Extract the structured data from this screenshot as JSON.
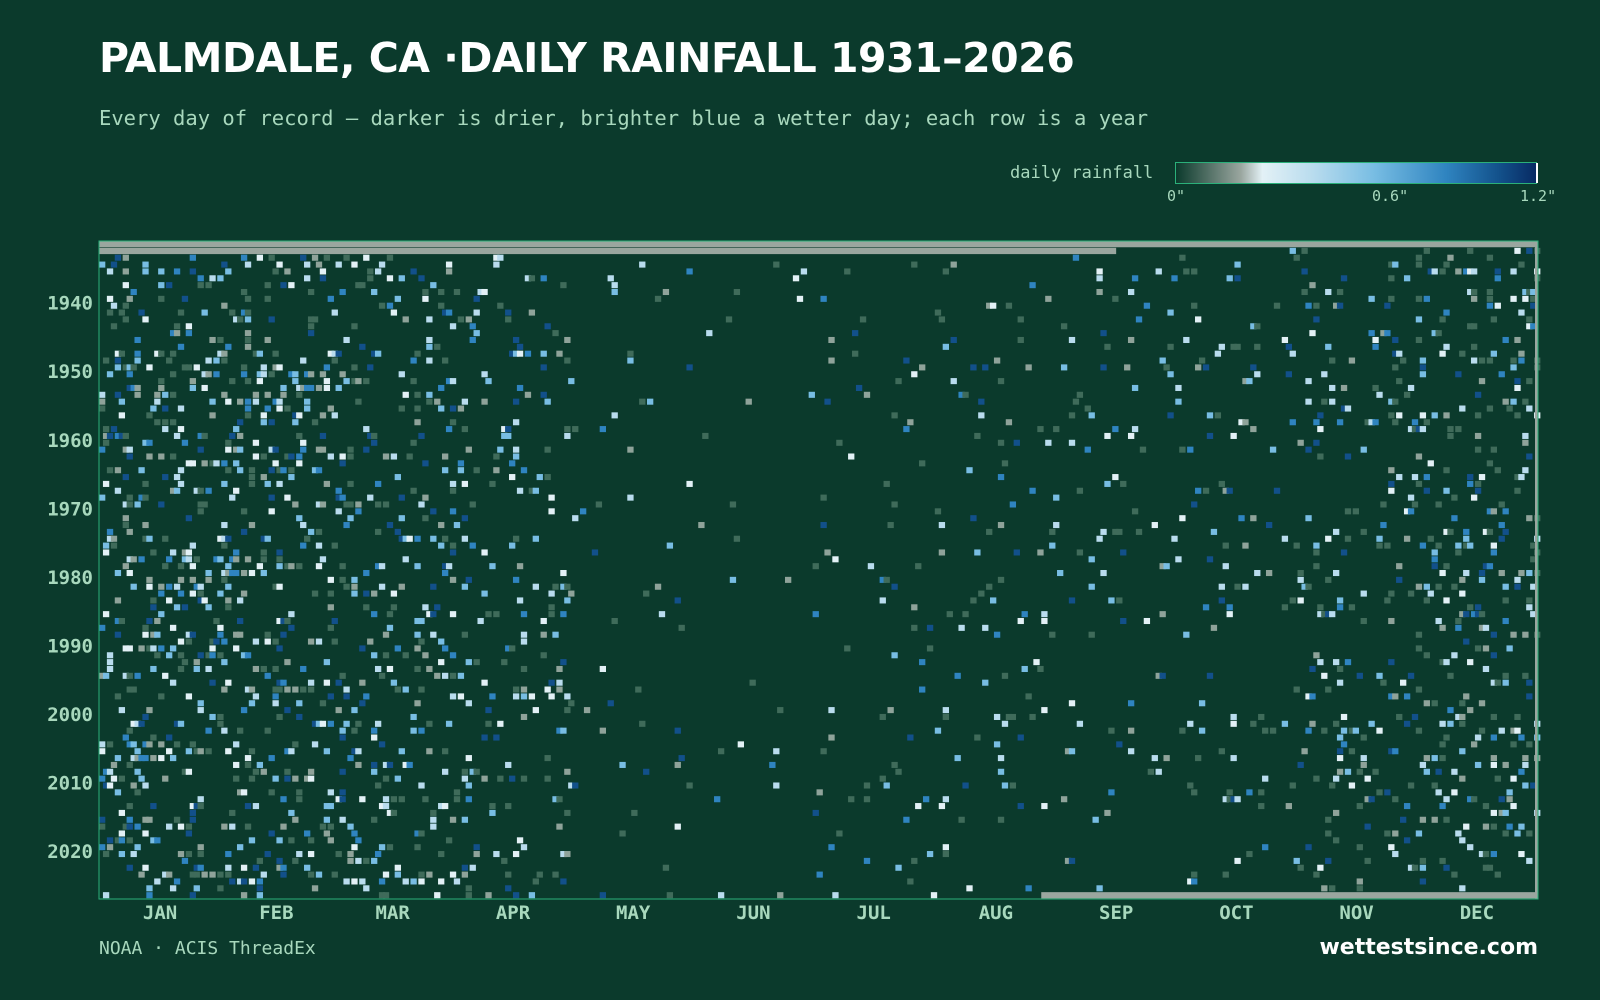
{
  "title": "PALMDALE, CA ·DAILY RAINFALL 1931–2026",
  "subtitle": "Every day of record — darker is drier, brighter blue a wetter day; each row is a year",
  "legend": {
    "label": "daily rainfall",
    "ticks": [
      "0\"",
      "0.6\"",
      "1.2\""
    ]
  },
  "source": "NOAA · ACIS ThreadEx",
  "brand": "wettestsince.com",
  "colors": {
    "background": "#0b3a2c",
    "frame": "#2bb07a",
    "missing": "#9aa69f",
    "low": "#e3f1f6",
    "mid": "#78bde3",
    "high": "#082a63"
  },
  "chart_data": {
    "type": "heatmap",
    "title": "PALMDALE, CA ·DAILY RAINFALL 1931–2026",
    "x_axis": "day of year",
    "y_axis": "year",
    "year_range": [
      1931,
      2026
    ],
    "ytick_labels": [
      "1940",
      "1950",
      "1960",
      "1970",
      "1980",
      "1990",
      "2000",
      "2010",
      "2020"
    ],
    "xtick_labels": [
      "JAN",
      "FEB",
      "MAR",
      "APR",
      "MAY",
      "JUN",
      "JUL",
      "AUG",
      "SEP",
      "OCT",
      "NOV",
      "DEC"
    ],
    "value_range": [
      0,
      1.2
    ],
    "value_unit": "inches",
    "monthly_wet_day_frequency": {
      "JAN": 0.13,
      "FEB": 0.13,
      "MAR": 0.11,
      "APR": 0.06,
      "MAY": 0.02,
      "JUN": 0.01,
      "JUL": 0.02,
      "AUG": 0.025,
      "SEP": 0.025,
      "OCT": 0.04,
      "NOV": 0.07,
      "DEC": 0.11
    },
    "missing_data": [
      {
        "year": 1931,
        "from_day": 1,
        "to_day": 365
      },
      {
        "year": 1932,
        "from_day": 1,
        "to_day": 258
      },
      {
        "year": 2026,
        "from_day": 240,
        "to_day": 365
      }
    ]
  }
}
